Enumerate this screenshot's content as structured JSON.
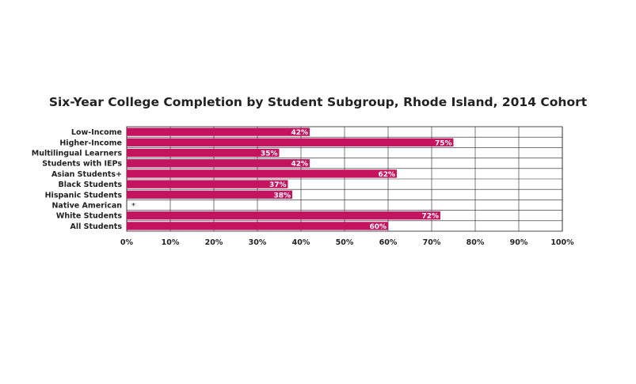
{
  "chart_data": {
    "type": "bar",
    "orientation": "horizontal",
    "title": "Six-Year College Completion by Student Subgroup, Rhode Island, 2014 Cohort",
    "categories": [
      "Low-Income",
      "Higher-Income",
      "Multilingual Learners",
      "Students with IEPs",
      "Asian Students+",
      "Black Students",
      "Hispanic Students",
      "Native American",
      "White Students",
      "All Students"
    ],
    "values": [
      42,
      75,
      35,
      42,
      62,
      37,
      38,
      null,
      72,
      60
    ],
    "data_labels": [
      "42%",
      "75%",
      "35%",
      "42%",
      "62%",
      "37%",
      "38%",
      "*",
      "72%",
      "60%"
    ],
    "xlim": [
      0,
      100
    ],
    "x_ticks": [
      "0%",
      "10%",
      "20%",
      "30%",
      "40%",
      "50%",
      "60%",
      "70%",
      "80%",
      "90%",
      "100%"
    ],
    "grid": "vertical",
    "bar_color": "#c4145f"
  }
}
